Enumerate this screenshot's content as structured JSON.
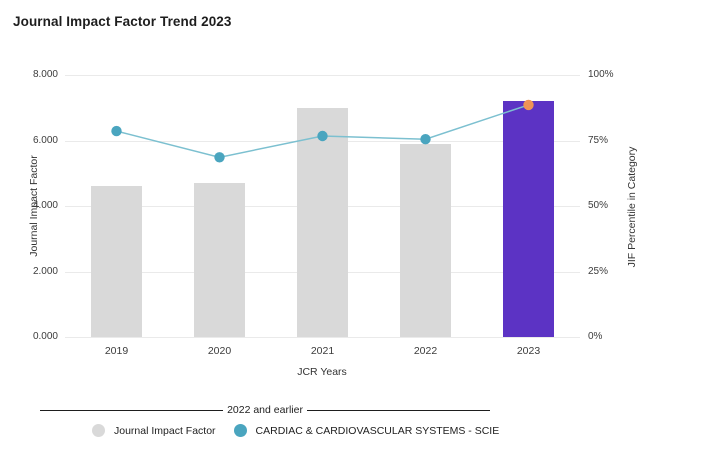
{
  "title": "Journal Impact Factor Trend 2023",
  "colors": {
    "bar_default": "#d9d9d9",
    "bar_highlight": "#5c33c4",
    "line": "#7cc0d0",
    "marker": "#4aa5bf",
    "marker_highlight": "#ef9355",
    "grid": "#eaeaea"
  },
  "chart_data": {
    "type": "bar",
    "categories": [
      "2019",
      "2020",
      "2021",
      "2022",
      "2023"
    ],
    "series": [
      {
        "name": "Journal Impact Factor",
        "type": "bar",
        "axis": "left",
        "values": [
          4.6,
          4.7,
          7.0,
          5.9,
          7.2
        ]
      },
      {
        "name": "CARDIAC & CARDIOVASCULAR SYSTEMS - SCIE",
        "type": "line",
        "axis": "right",
        "values": [
          78.6,
          68.6,
          76.7,
          75.5,
          88.6
        ]
      }
    ],
    "highlight_category": "2023",
    "title": "Journal Impact Factor Trend 2023",
    "xlabel": "JCR Years",
    "left_axis": {
      "label": "Journal Impact Factor",
      "min": 0,
      "max": 8,
      "ticks": [
        "8.000",
        "6.000",
        "4.000",
        "2.000",
        "0.000"
      ]
    },
    "right_axis": {
      "label": "JIF Percentile in Category",
      "min": 0,
      "max": 100,
      "ticks": [
        "100%",
        "75%",
        "50%",
        "25%",
        "0%"
      ]
    },
    "grid": true,
    "legend_position": "bottom"
  },
  "annotation": {
    "label": "2022 and earlier"
  },
  "legend": [
    {
      "label": "Journal Impact Factor",
      "color": "#d9d9d9"
    },
    {
      "label": "CARDIAC & CARDIOVASCULAR SYSTEMS - SCIE",
      "color": "#4aa5bf"
    }
  ]
}
